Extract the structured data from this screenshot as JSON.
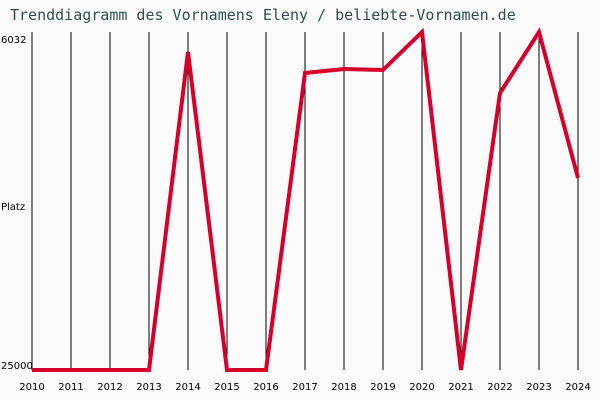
{
  "title": "Trenddiagramm des Vornamens Eleny / beliebte-Vornamen.de",
  "y_axis": {
    "label": "Platz",
    "top_label": "6032",
    "bottom_label": "25000"
  },
  "colors": {
    "line": "#d7002a",
    "grid": "#000000",
    "title": "#2f4f4f",
    "background": "#fafafa"
  },
  "chart_data": {
    "type": "line",
    "title": "Trenddiagramm des Vornamens Eleny / beliebte-Vornamen.de",
    "xlabel": "",
    "ylabel": "Platz",
    "ylim": [
      25000,
      6032
    ],
    "y_inverted": true,
    "grid": {
      "vertical": true,
      "horizontal": false
    },
    "categories": [
      "2010",
      "2011",
      "2012",
      "2013",
      "2014",
      "2015",
      "2016",
      "2017",
      "2018",
      "2019",
      "2020",
      "2021",
      "2022",
      "2023",
      "2024"
    ],
    "series": [
      {
        "name": "Eleny",
        "values": [
          25000,
          25000,
          25000,
          25000,
          7154,
          25000,
          25000,
          8333,
          8109,
          8165,
          6032,
          25000,
          9455,
          6032,
          14225
        ]
      }
    ]
  }
}
